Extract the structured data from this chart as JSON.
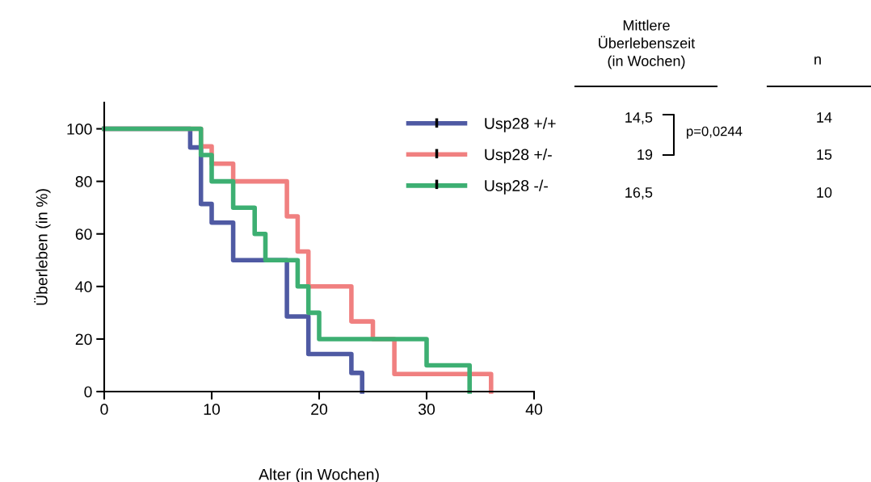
{
  "chart_data": {
    "type": "step",
    "xlabel": "Alter (in Wochen)",
    "ylabel": "Überleben (in %)",
    "series": [
      {
        "name": "Usp28 +/+",
        "color": "#4f5aa3",
        "x": [
          0,
          8,
          9,
          10,
          12,
          17,
          19,
          23,
          24
        ],
        "values": [
          100,
          92.9,
          71.4,
          64.3,
          50,
          28.6,
          14.3,
          7.1,
          0
        ]
      },
      {
        "name": "Usp28 +/-",
        "color": "#f08080",
        "x": [
          0,
          9,
          10,
          12,
          17,
          18,
          19,
          23,
          25,
          27,
          36
        ],
        "values": [
          100,
          93.3,
          86.7,
          80,
          66.7,
          53.3,
          40,
          26.7,
          20,
          6.7,
          0
        ]
      },
      {
        "name": "Usp28 -/-",
        "color": "#3daf72",
        "x": [
          0,
          9,
          10,
          12,
          14,
          15,
          18,
          19,
          20,
          30,
          34
        ],
        "values": [
          100,
          90,
          80,
          70,
          60,
          50,
          40,
          30,
          20,
          10,
          0
        ]
      }
    ],
    "xlim": [
      0,
      40
    ],
    "xticks": [
      0,
      10,
      20,
      30,
      40
    ],
    "ylim": [
      0,
      110
    ],
    "yticks": [
      0,
      20,
      40,
      60,
      80,
      100
    ],
    "grid": false,
    "legend": "top right",
    "marker": "none",
    "line_style": "solid",
    "annotations": [
      "Mittlere\nÜberlebenszeit\n(in Wochen)",
      "n",
      "14,5",
      "19",
      "16,5",
      "p=0,0244",
      "14",
      "15",
      "10"
    ]
  }
}
